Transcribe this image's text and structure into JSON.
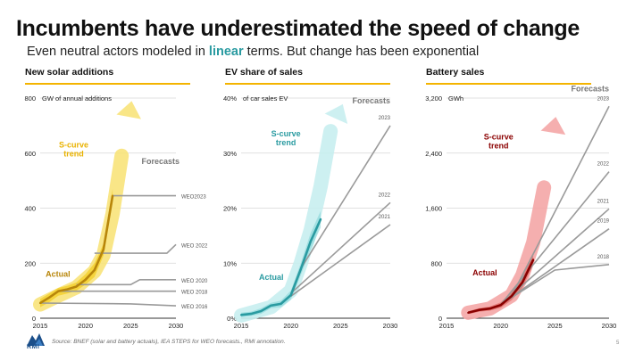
{
  "header": {
    "title": "Incumbents have underestimated the speed of change",
    "subtitle_pre": "Even neutral actors modeled in ",
    "subtitle_highlight": "linear",
    "subtitle_post": " terms. But change has been exponential"
  },
  "footer": {
    "source": "Source: BNEF (solar and battery actuals), IEA STEPS for WEO forecasts., RMI annotation.",
    "page_number": "5",
    "logo_text": "RMI"
  },
  "colors": {
    "gold": "#e9b200",
    "teal": "#2a9ba1",
    "red": "#8b0000",
    "grey": "#9a9a9a",
    "accent_rule": "#f4b400"
  },
  "chart_data": [
    {
      "type": "line",
      "title": "New solar additions",
      "unit_label": "GW of annual additions",
      "xlim": [
        2015,
        2030
      ],
      "ylim": [
        0,
        800
      ],
      "x_ticks": [
        "2015",
        "2020",
        "2025",
        "2030"
      ],
      "y_ticks": [
        {
          "v": 0,
          "label": "0"
        },
        {
          "v": 200,
          "label": "200"
        },
        {
          "v": 400,
          "label": "400"
        },
        {
          "v": 600,
          "label": "600"
        },
        {
          "v": 800,
          "label": "800"
        }
      ],
      "forecasts_label": "Forecasts",
      "scurve_label": [
        "S-curve",
        "trend"
      ],
      "actual_label": "Actual",
      "accent": "#e9b200",
      "actual_color": "#b8860b",
      "band_color": "#f2c400",
      "arrow_color": "#f8e37a",
      "actual": {
        "x": [
          2015,
          2016,
          2017,
          2018,
          2019,
          2020,
          2021,
          2022,
          2023
        ],
        "y": [
          55,
          75,
          98,
          105,
          115,
          140,
          175,
          250,
          445
        ]
      },
      "band_upper": [
        [
          2015,
          70
        ],
        [
          2016,
          90
        ],
        [
          2017,
          110
        ],
        [
          2018,
          118
        ],
        [
          2019,
          130
        ],
        [
          2020,
          160
        ],
        [
          2021,
          200
        ],
        [
          2022,
          270
        ],
        [
          2023,
          470
        ]
      ],
      "band_lower": [
        [
          2015,
          40
        ],
        [
          2016,
          58
        ],
        [
          2017,
          82
        ],
        [
          2018,
          90
        ],
        [
          2019,
          100
        ],
        [
          2020,
          122
        ],
        [
          2021,
          150
        ],
        [
          2022,
          228
        ],
        [
          2023,
          420
        ]
      ],
      "scurve": [
        [
          2015,
          50
        ],
        [
          2017,
          82
        ],
        [
          2019,
          112
        ],
        [
          2021,
          170
        ],
        [
          2022,
          230
        ],
        [
          2023,
          380
        ],
        [
          2024,
          590
        ],
        [
          2025,
          770
        ]
      ],
      "forecasts": [
        {
          "label": "WEO2023",
          "points": [
            [
              2023,
              445
            ],
            [
              2030,
              445
            ]
          ]
        },
        {
          "label": "WEO 2022",
          "points": [
            [
              2021,
              236
            ],
            [
              2029,
              236
            ],
            [
              2030,
              268
            ]
          ]
        },
        {
          "label": "WEO 2020",
          "points": [
            [
              2019,
              122
            ],
            [
              2025,
              122
            ],
            [
              2026,
              140
            ],
            [
              2030,
              140
            ]
          ]
        },
        {
          "label": "WEO 2018",
          "points": [
            [
              2017,
              98
            ],
            [
              2030,
              98
            ]
          ]
        },
        {
          "label": "WEO 2016",
          "points": [
            [
              2015,
              55
            ],
            [
              2025,
              52
            ],
            [
              2030,
              45
            ]
          ]
        }
      ]
    },
    {
      "type": "line",
      "title": "EV share of sales",
      "unit_label": "of car sales EV",
      "xlim": [
        2015,
        2030
      ],
      "ylim": [
        0,
        40
      ],
      "x_ticks": [
        "2015",
        "2020",
        "2025",
        "2030"
      ],
      "y_ticks": [
        {
          "v": 0,
          "label": "0%"
        },
        {
          "v": 10,
          "label": "10%"
        },
        {
          "v": 20,
          "label": "20%"
        },
        {
          "v": 30,
          "label": "30%"
        },
        {
          "v": 40,
          "label": "40%"
        }
      ],
      "forecasts_label": "Forecasts",
      "scurve_label": [
        "S-curve",
        "trend"
      ],
      "actual_label": "Actual",
      "accent": "#2a9ba1",
      "actual_color": "#2a9ba1",
      "band_color": "#7fd3d6",
      "arrow_color": "#c8eef0",
      "actual": {
        "x": [
          2015,
          2016,
          2017,
          2018,
          2019,
          2020,
          2021,
          2022,
          2023
        ],
        "y": [
          0.6,
          0.8,
          1.3,
          2.3,
          2.6,
          4.2,
          8.9,
          14,
          18
        ]
      },
      "band_upper": [
        [
          2015,
          1.0
        ],
        [
          2016,
          1.2
        ],
        [
          2017,
          1.8
        ],
        [
          2018,
          2.8
        ],
        [
          2019,
          3.2
        ],
        [
          2020,
          5.0
        ],
        [
          2021,
          10
        ],
        [
          2022,
          15.5
        ],
        [
          2023,
          19.5
        ]
      ],
      "band_lower": [
        [
          2015,
          0.2
        ],
        [
          2016,
          0.4
        ],
        [
          2017,
          0.8
        ],
        [
          2018,
          1.8
        ],
        [
          2019,
          2.0
        ],
        [
          2020,
          3.4
        ],
        [
          2021,
          7.8
        ],
        [
          2022,
          12.5
        ],
        [
          2023,
          16.5
        ]
      ],
      "scurve": [
        [
          2015,
          0.5
        ],
        [
          2018,
          2
        ],
        [
          2020,
          5
        ],
        [
          2021,
          10
        ],
        [
          2022,
          16
        ],
        [
          2023,
          24
        ],
        [
          2024,
          34
        ],
        [
          2025,
          38
        ]
      ],
      "forecasts": [
        {
          "label": "2023",
          "points": [
            [
              2021,
              9
            ],
            [
              2030,
              35
            ]
          ]
        },
        {
          "label": "2022",
          "points": [
            [
              2020,
              4.5
            ],
            [
              2030,
              21
            ]
          ]
        },
        {
          "label": "2021",
          "points": [
            [
              2020,
              4.0
            ],
            [
              2030,
              17
            ]
          ]
        }
      ]
    },
    {
      "type": "line",
      "title": "Battery sales",
      "unit_label": "GWh",
      "xlim": [
        2015,
        2030
      ],
      "ylim": [
        0,
        3200
      ],
      "x_ticks": [
        "2015",
        "2020",
        "2025",
        "2030"
      ],
      "y_ticks": [
        {
          "v": 0,
          "label": "0"
        },
        {
          "v": 800,
          "label": "800"
        },
        {
          "v": 1600,
          "label": "1,600"
        },
        {
          "v": 2400,
          "label": "2,400"
        },
        {
          "v": 3200,
          "label": "3,200"
        }
      ],
      "forecasts_label": "Forecasts",
      "scurve_label": [
        "S-curve",
        "trend"
      ],
      "actual_label": "Actual",
      "accent": "#8b0000",
      "actual_color": "#8b0000",
      "band_color": "#d9534f",
      "arrow_color": "#f4a6a6",
      "actual": {
        "x": [
          2017,
          2018,
          2019,
          2020,
          2021,
          2022,
          2023
        ],
        "y": [
          80,
          120,
          140,
          190,
          320,
          520,
          850
        ]
      },
      "band_upper": [
        [
          2017,
          100
        ],
        [
          2018,
          145
        ],
        [
          2019,
          170
        ],
        [
          2020,
          230
        ],
        [
          2021,
          380
        ],
        [
          2022,
          600
        ],
        [
          2023,
          930
        ]
      ],
      "band_lower": [
        [
          2017,
          60
        ],
        [
          2018,
          95
        ],
        [
          2019,
          110
        ],
        [
          2020,
          150
        ],
        [
          2021,
          260
        ],
        [
          2022,
          440
        ],
        [
          2023,
          770
        ]
      ],
      "scurve": [
        [
          2017,
          80
        ],
        [
          2019,
          140
        ],
        [
          2021,
          330
        ],
        [
          2022,
          620
        ],
        [
          2023,
          1100
        ],
        [
          2024,
          1900
        ],
        [
          2025,
          2850
        ]
      ],
      "forecasts": [
        {
          "label": "2023",
          "points": [
            [
              2021,
              320
            ],
            [
              2030,
              3080
            ]
          ]
        },
        {
          "label": "2022",
          "points": [
            [
              2020,
              200
            ],
            [
              2030,
              2130
            ]
          ]
        },
        {
          "label": "2021",
          "points": [
            [
              2020,
              200
            ],
            [
              2030,
              1590
            ]
          ]
        },
        {
          "label": "2019",
          "points": [
            [
              2020,
              200
            ],
            [
              2030,
              1300
            ]
          ]
        },
        {
          "label": "2018",
          "points": [
            [
              2020,
              200
            ],
            [
              2025,
              700
            ],
            [
              2030,
              780
            ]
          ]
        }
      ]
    }
  ]
}
